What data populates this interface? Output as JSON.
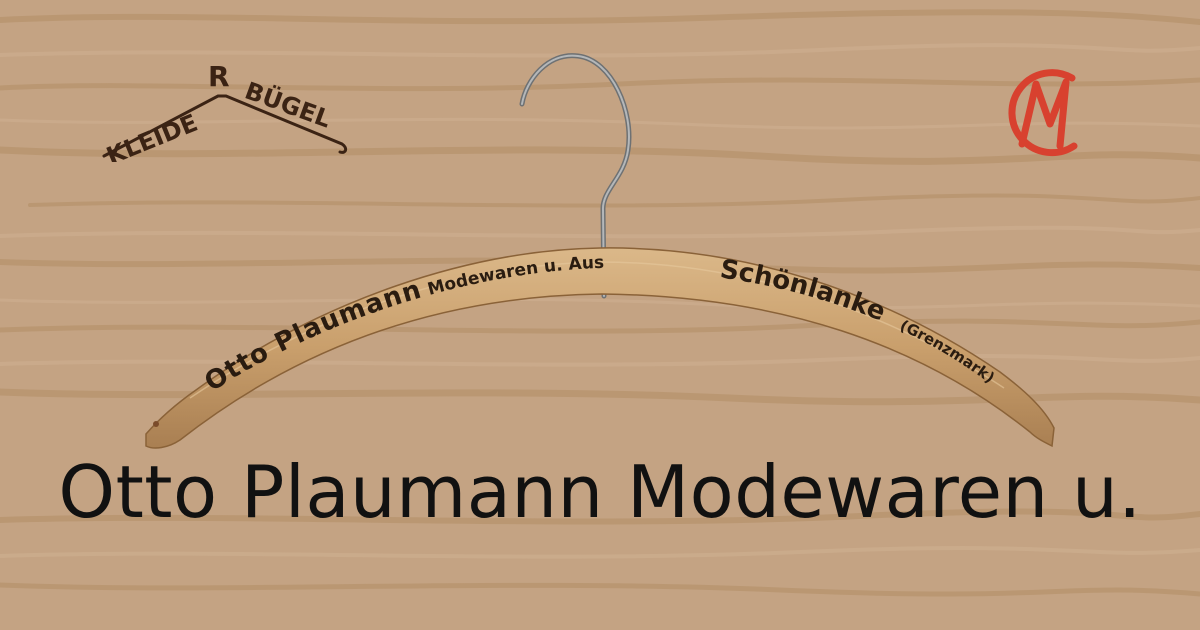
{
  "brand": {
    "logo_text_left": "KLEIDE",
    "logo_text_right": "BÜGEL",
    "logo_mark": "R",
    "monogram": "CM"
  },
  "hanger": {
    "imprint_name": "Otto Plaumann",
    "imprint_trade": "Modewaren u. Ausstattung",
    "imprint_place": "Schönlanke",
    "imprint_region": "(Grenzmark)"
  },
  "caption": {
    "title": "Otto Plaumann Modewaren u."
  },
  "colors": {
    "background": "#c4a383",
    "wood": "#cfa877",
    "ink": "#2a1c10",
    "monogram_red": "#d8412f",
    "logo_brown": "#3b2314"
  },
  "icons": [
    "hanger-icon",
    "monogram-icon",
    "kleiderbuegel-logo-icon"
  ]
}
